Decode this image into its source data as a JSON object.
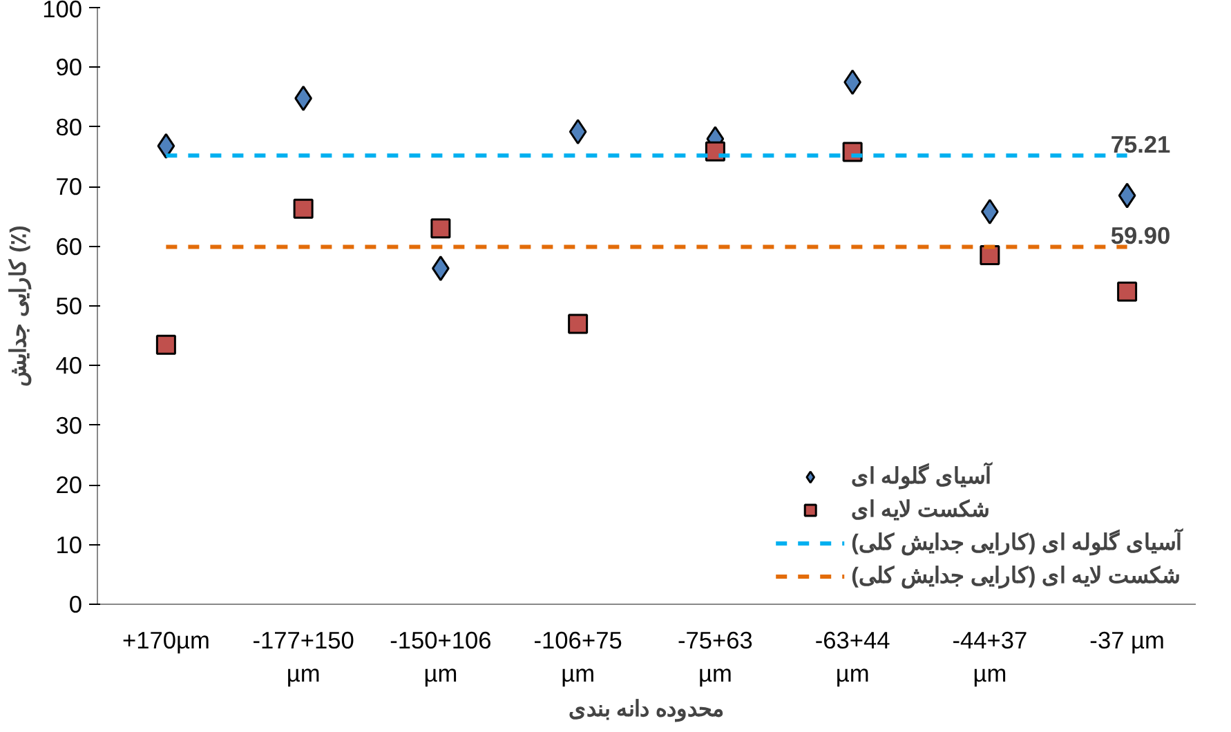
{
  "chart_data": {
    "type": "scatter",
    "xlabel": "محدوده دانه بندی",
    "ylabel": "کارایی جدایش (٪)",
    "categories": [
      "+170µm",
      "-177+150 µm",
      "-150+106 µm",
      "-106+75 µm",
      "-75+63 µm",
      "-63+44 µm",
      "-44+37 µm",
      "-37 µm"
    ],
    "ylim": [
      0,
      100
    ],
    "yticks": [
      0,
      10,
      20,
      30,
      40,
      50,
      60,
      70,
      80,
      90,
      100
    ],
    "grid": false,
    "legend": "bottom right",
    "series": [
      {
        "name": "آسیای گلوله ای",
        "color": "#4f81bd",
        "marker": "diamond",
        "values": [
          76.8,
          84.8,
          56.3,
          79.2,
          78.0,
          87.5,
          65.8,
          68.5
        ]
      },
      {
        "name": "شکست لایه ای",
        "color": "#c0504d",
        "marker": "square",
        "values": [
          43.5,
          66.3,
          63.0,
          47.0,
          75.9,
          75.8,
          58.5,
          52.4
        ]
      },
      {
        "name": "آسیای گلوله ای (کارایی جدایش کلی)",
        "type": "line",
        "line_style": "dashed",
        "color": "#00b0f0",
        "values": [
          75.21,
          75.21,
          75.21,
          75.21,
          75.21,
          75.21,
          75.21,
          75.21
        ],
        "value_labels": [
          null,
          null,
          null,
          null,
          null,
          null,
          null,
          "75.21"
        ]
      },
      {
        "name": "شکست لایه ای (کارایی جدایش کلی)",
        "type": "line",
        "line_style": "dashed",
        "color": "#e36c09",
        "values": [
          59.9,
          59.9,
          59.9,
          59.9,
          59.9,
          59.9,
          59.9,
          59.9
        ],
        "value_labels": [
          null,
          null,
          null,
          null,
          null,
          null,
          null,
          "59.90"
        ]
      }
    ]
  }
}
